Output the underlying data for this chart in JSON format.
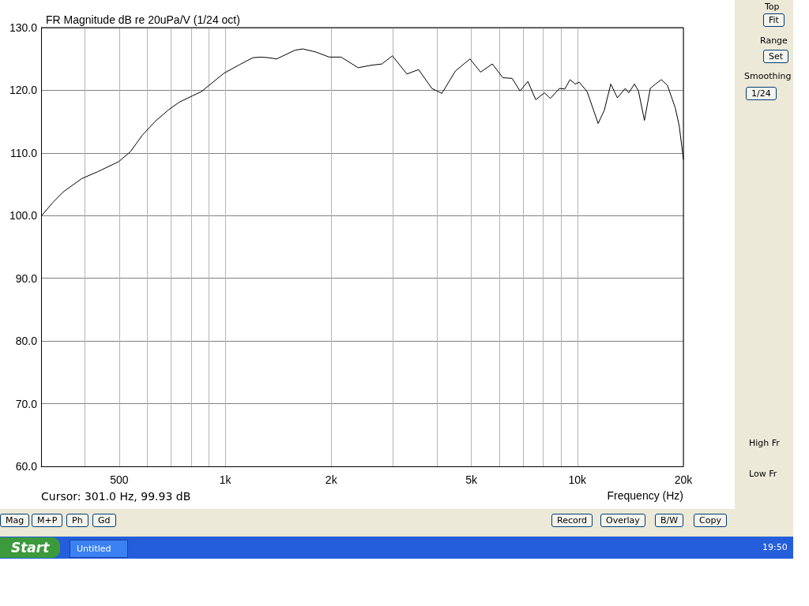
{
  "chart_data": {
    "type": "line",
    "title": "FR Magnitude dB re 20uPa/V (1/24 oct)",
    "xlabel": "Frequency (Hz)",
    "log": "x",
    "grid": true,
    "marker": "none",
    "line_style": "solid",
    "xlim": [
      300,
      20000
    ],
    "xticks": [
      {
        "value": 400,
        "label": null
      },
      500,
      {
        "value": 600,
        "label": null
      },
      {
        "value": 700,
        "label": null
      },
      {
        "value": 800,
        "label": null
      },
      {
        "value": 900,
        "label": null
      },
      {
        "value": 1000,
        "label": "1k"
      },
      {
        "value": 2000,
        "label": "2k"
      },
      {
        "value": 3000,
        "label": null
      },
      {
        "value": 4000,
        "label": null
      },
      {
        "value": 5000,
        "label": "5k"
      },
      {
        "value": 6000,
        "label": null
      },
      {
        "value": 7000,
        "label": null
      },
      {
        "value": 8000,
        "label": null
      },
      {
        "value": 9000,
        "label": null
      },
      {
        "value": 10000,
        "label": "10k"
      },
      {
        "value": 20000,
        "label": "20k"
      }
    ],
    "ylim": [
      60,
      130
    ],
    "yticks": [
      {
        "value": 60,
        "label": "60.0"
      },
      {
        "value": 70,
        "label": "70.0"
      },
      {
        "value": 80,
        "label": "80.0"
      },
      {
        "value": 90,
        "label": "90.0"
      },
      {
        "value": 100,
        "label": "100.0"
      },
      {
        "value": 110,
        "label": "110.0"
      },
      {
        "value": 120,
        "label": "120.0"
      },
      {
        "value": 130,
        "label": "130.0"
      }
    ],
    "series": [
      {
        "color": "#000000",
        "x": [
          301,
          324,
          347,
          391,
          434,
          498,
          538,
          581,
          634,
          691,
          740,
          806,
          856,
          991,
          1099,
          1198,
          1262,
          1328,
          1399,
          1578,
          1661,
          1811,
          1974,
          2133,
          2385,
          2599,
          2785,
          2983,
          3280,
          3542,
          3861,
          4121,
          4508,
          4955,
          5309,
          5734,
          6145,
          6527,
          6871,
          7236,
          7617,
          8066,
          8379,
          8895,
          9208,
          9531,
          9863,
          10120,
          10657,
          11455,
          11922,
          12442,
          12991,
          13677,
          13985,
          14524,
          14907,
          15506,
          16106,
          16672,
          17315,
          18015,
          18967,
          19467,
          20000
        ],
        "values": [
          100.0,
          102.1,
          103.8,
          105.9,
          107.0,
          108.6,
          110.2,
          112.8,
          115.1,
          116.9,
          118.1,
          119.1,
          119.8,
          122.7,
          124.1,
          125.2,
          125.3,
          125.2,
          125.0,
          126.4,
          126.6,
          126.1,
          125.3,
          125.3,
          123.6,
          124.0,
          124.2,
          125.5,
          122.6,
          123.3,
          120.3,
          119.5,
          123.1,
          125.0,
          122.9,
          124.2,
          122.0,
          121.9,
          119.9,
          121.4,
          118.5,
          119.6,
          118.7,
          120.3,
          120.2,
          121.7,
          121.0,
          121.3,
          119.8,
          114.7,
          116.8,
          121.0,
          118.8,
          120.3,
          119.6,
          121.0,
          119.9,
          115.2,
          120.3,
          121.0,
          121.7,
          120.8,
          117.2,
          114.3,
          109.0
        ]
      }
    ],
    "annotations": [
      "Cursor: 301.0 Hz, 99.93 dB",
      "Mag",
      "M+P",
      "Ph",
      "Gd",
      "Record",
      "Overlay",
      "B/W",
      "Copy",
      "Top",
      "Fit",
      "Range",
      "Set",
      "Smoothing",
      "1/24",
      "High Fr",
      "Low Fr",
      "Start",
      "Untitled",
      "19:50"
    ]
  }
}
